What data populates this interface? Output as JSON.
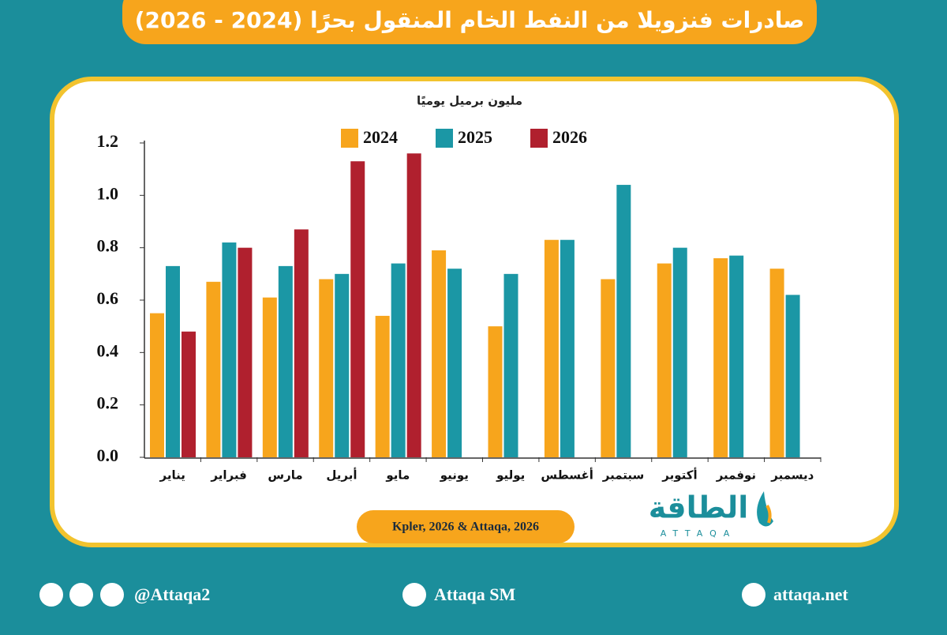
{
  "chart_data": {
    "type": "bar",
    "title": "صادرات فنزويلا من النفط الخام المنقول بحرًا (2024 - 2026)",
    "y_label": "مليون برميل يوميًا",
    "source": "Kpler, 2026 & Attaqa, 2026",
    "categories": [
      "يناير",
      "فبراير",
      "مارس",
      "أبريل",
      "مايو",
      "يونيو",
      "يوليو",
      "أغسطس",
      "سبتمبر",
      "أكتوبر",
      "نوفمبر",
      "ديسمبر"
    ],
    "series": [
      {
        "name": "2024",
        "color": "#f7a51c",
        "values": [
          0.55,
          0.67,
          0.61,
          0.68,
          0.54,
          0.79,
          0.5,
          0.83,
          0.68,
          0.74,
          0.76,
          0.72
        ]
      },
      {
        "name": "2025",
        "color": "#1b97a5",
        "values": [
          0.73,
          0.82,
          0.73,
          0.7,
          0.74,
          0.72,
          0.7,
          0.83,
          1.04,
          0.8,
          0.77,
          0.62
        ]
      },
      {
        "name": "2026",
        "color": "#b0202e",
        "values": [
          0.48,
          0.8,
          0.87,
          1.13,
          1.16,
          null,
          null,
          null,
          null,
          null,
          null,
          null
        ]
      }
    ],
    "ylim": [
      0,
      1.2
    ],
    "yticks": [
      {
        "value": 0,
        "label": "0.0"
      },
      0.2,
      0.4,
      0.6,
      0.8,
      {
        "value": 1,
        "label": "1.0"
      },
      1.2
    ],
    "grid": false
  },
  "logo": {
    "arabic": "الطاقة",
    "latin": "ATTAQA"
  },
  "footer": {
    "twitter": "@Attaqa2",
    "youtube": "Attaqa SM",
    "website": "attaqa.net"
  }
}
